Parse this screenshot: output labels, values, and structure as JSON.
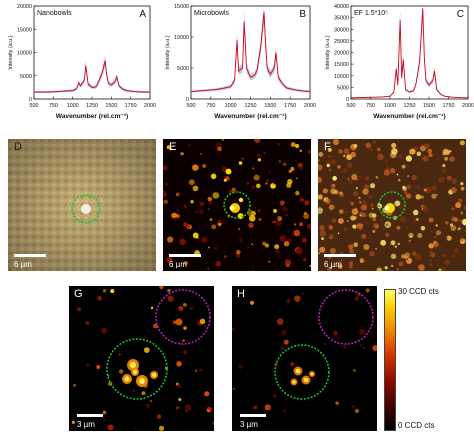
{
  "chart_data": [
    {
      "type": "line",
      "panel": "A",
      "title": "Nanobowls",
      "xlabel": "Wavenumber (rel.cm⁻¹)",
      "ylabel": "Intensity (a.u.)",
      "xlim": [
        500,
        2000
      ],
      "ylim": [
        0,
        20000
      ],
      "xticks": [
        "500",
        "750",
        "1000",
        "1250",
        "1500",
        "1750",
        "2000"
      ],
      "yticks": [
        "0",
        "5000",
        "10000",
        "15000",
        "20000"
      ],
      "x": [
        500,
        600,
        700,
        800,
        900,
        1000,
        1050,
        1080,
        1100,
        1150,
        1170,
        1200,
        1250,
        1300,
        1330,
        1380,
        1420,
        1440,
        1460,
        1500,
        1550,
        1570,
        1600,
        1650,
        1700,
        1800,
        1900,
        2000
      ],
      "series": [
        {
          "values": [
            1500,
            1500,
            1500,
            1600,
            1700,
            1800,
            2200,
            3500,
            2800,
            4000,
            7200,
            3200,
            2500,
            2600,
            3500,
            5500,
            8200,
            5200,
            3500,
            3000,
            3800,
            4800,
            2800,
            2100,
            1800,
            1600,
            1500,
            1500
          ]
        }
      ]
    },
    {
      "type": "line",
      "panel": "B",
      "title": "Microbowls",
      "xlabel": "Wavenumber (rel.cm⁻¹)",
      "ylabel": "Intensity (a.u.)",
      "xlim": [
        500,
        2000
      ],
      "ylim": [
        0,
        15000
      ],
      "xticks": [
        "500",
        "750",
        "1000",
        "1250",
        "1500",
        "1750",
        "2000"
      ],
      "yticks": [
        "0",
        "5000",
        "10000",
        "15000"
      ],
      "x": [
        500,
        600,
        700,
        800,
        900,
        1000,
        1050,
        1080,
        1100,
        1150,
        1170,
        1200,
        1250,
        1300,
        1330,
        1380,
        1420,
        1440,
        1460,
        1500,
        1550,
        1570,
        1600,
        1650,
        1700,
        1800,
        1900,
        2000
      ],
      "series": [
        {
          "values": [
            1200,
            1300,
            1400,
            1500,
            1700,
            2000,
            3000,
            9500,
            4500,
            5000,
            12500,
            5000,
            3500,
            3800,
            4500,
            8500,
            14000,
            9000,
            5000,
            4000,
            5000,
            7500,
            3500,
            2500,
            1800,
            1500,
            1300,
            1200
          ]
        }
      ]
    },
    {
      "type": "line",
      "panel": "C",
      "title": "EF 1.5*10⁵",
      "xlabel": "Wavenumber (rel.cm⁻¹)",
      "ylabel": "Intensity (a.u.)",
      "xlim": [
        500,
        2000
      ],
      "ylim": [
        0,
        40000
      ],
      "xticks": [
        "500",
        "750",
        "1000",
        "1250",
        "1500",
        "1750",
        "2000"
      ],
      "yticks": [
        "0",
        "5000",
        "10000",
        "15000",
        "20000",
        "25000",
        "30000",
        "35000",
        "40000"
      ],
      "x": [
        500,
        600,
        700,
        800,
        900,
        1000,
        1050,
        1080,
        1100,
        1130,
        1150,
        1170,
        1200,
        1250,
        1300,
        1330,
        1380,
        1420,
        1440,
        1460,
        1500,
        1550,
        1570,
        1600,
        1650,
        1700,
        1800,
        1900,
        2000
      ],
      "series": [
        {
          "values": [
            500,
            600,
            700,
            800,
            900,
            1200,
            3000,
            13000,
            6000,
            34000,
            9000,
            17000,
            4000,
            3000,
            3500,
            6000,
            16000,
            39000,
            18000,
            8000,
            6000,
            8000,
            12000,
            4000,
            2000,
            1200,
            800,
            600,
            500
          ]
        }
      ]
    }
  ],
  "image_panels": {
    "D": {
      "letter": "D",
      "scale": "6 µm"
    },
    "E": {
      "letter": "E",
      "scale": "6 µm"
    },
    "F": {
      "letter": "F",
      "scale": "6 µm"
    },
    "G": {
      "letter": "G",
      "scale": "3 µm"
    },
    "H": {
      "letter": "H",
      "scale": "3 µm"
    }
  },
  "colorbar": {
    "max_label": "30 CCD cts",
    "min_label": "0 CCD cts"
  },
  "colors": {
    "line": "#d0021b",
    "band": "#8a9bb0",
    "circle_green": "#19c830",
    "circle_magenta": "#c81ec8"
  }
}
